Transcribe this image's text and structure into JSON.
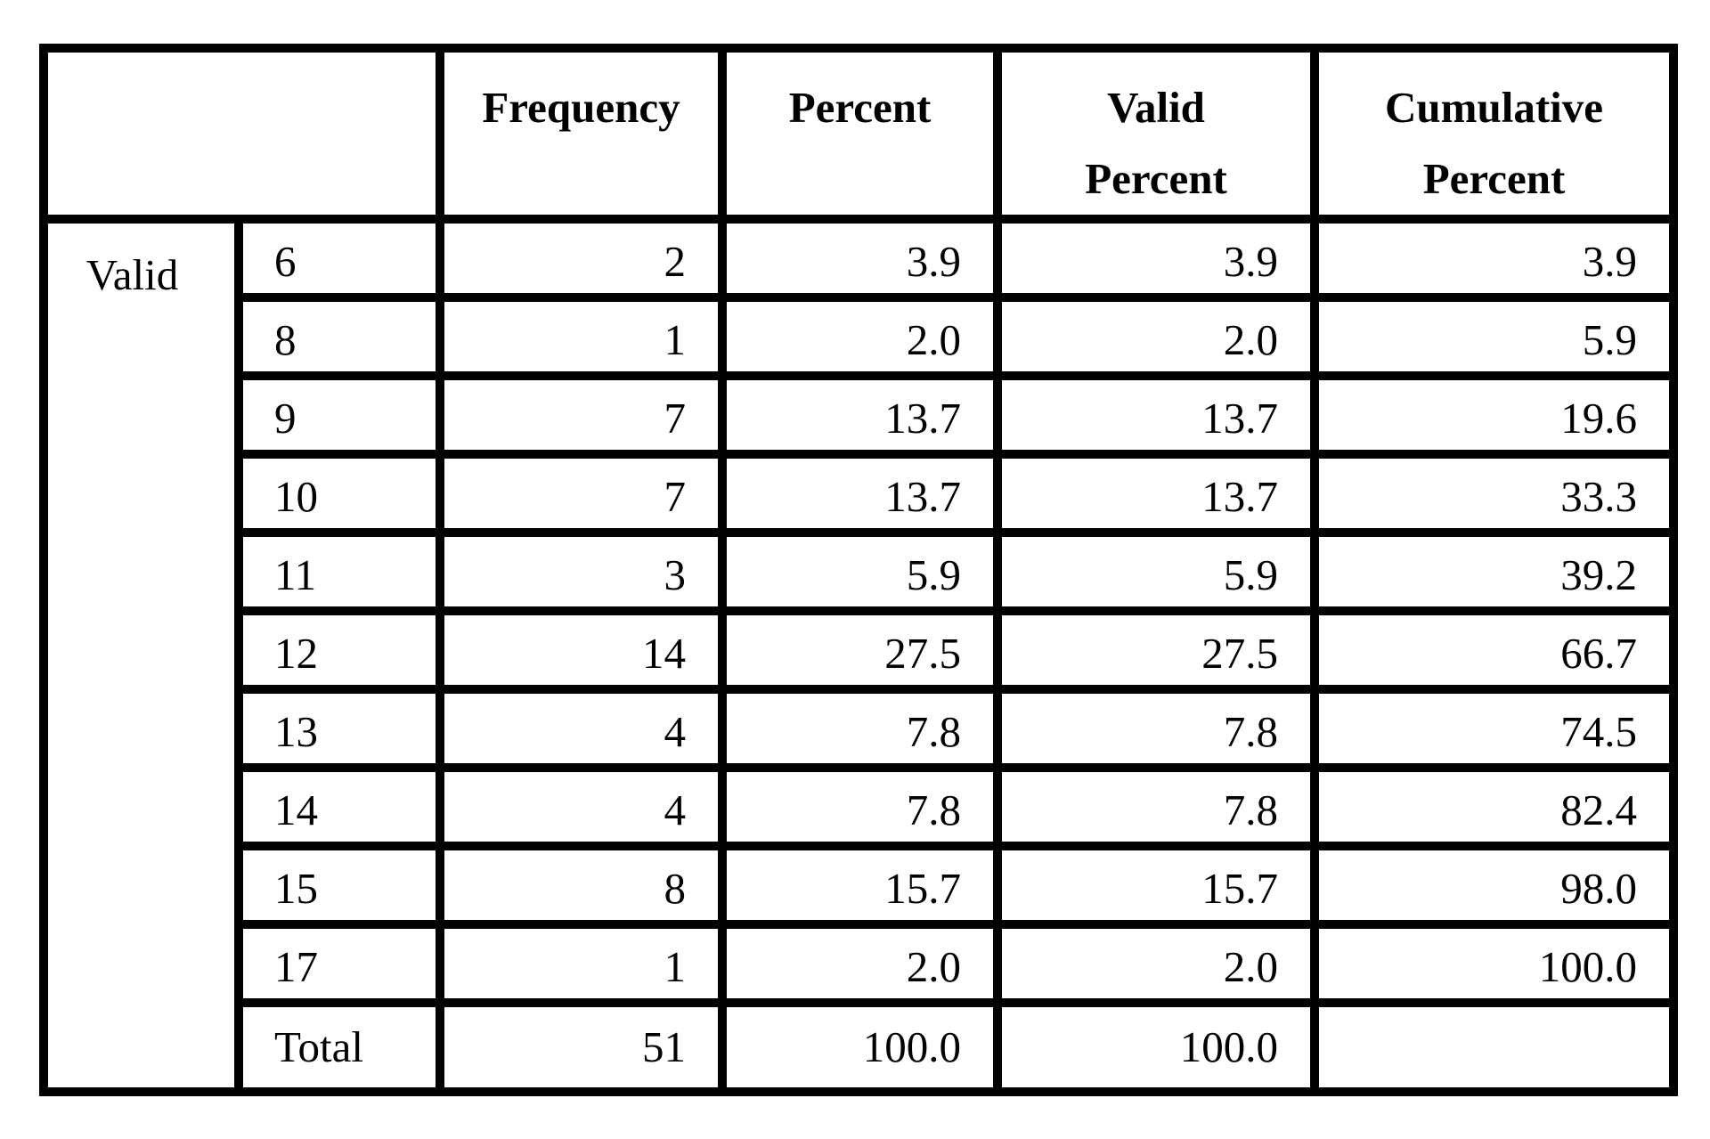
{
  "table": {
    "headers": {
      "frequency": "Frequency",
      "percent": "Percent",
      "valid_percent_line1": "Valid",
      "valid_percent_line2": "Percent",
      "cumulative_percent_line1": "Cumulative",
      "cumulative_percent_line2": "Percent"
    },
    "group_label": "Valid",
    "rows": [
      {
        "value": "6",
        "frequency": "2",
        "percent": "3.9",
        "valid_percent": "3.9",
        "cumulative_percent": "3.9"
      },
      {
        "value": "8",
        "frequency": "1",
        "percent": "2.0",
        "valid_percent": "2.0",
        "cumulative_percent": "5.9"
      },
      {
        "value": "9",
        "frequency": "7",
        "percent": "13.7",
        "valid_percent": "13.7",
        "cumulative_percent": "19.6"
      },
      {
        "value": "10",
        "frequency": "7",
        "percent": "13.7",
        "valid_percent": "13.7",
        "cumulative_percent": "33.3"
      },
      {
        "value": "11",
        "frequency": "3",
        "percent": "5.9",
        "valid_percent": "5.9",
        "cumulative_percent": "39.2"
      },
      {
        "value": "12",
        "frequency": "14",
        "percent": "27.5",
        "valid_percent": "27.5",
        "cumulative_percent": "66.7"
      },
      {
        "value": "13",
        "frequency": "4",
        "percent": "7.8",
        "valid_percent": "7.8",
        "cumulative_percent": "74.5"
      },
      {
        "value": "14",
        "frequency": "4",
        "percent": "7.8",
        "valid_percent": "7.8",
        "cumulative_percent": "82.4"
      },
      {
        "value": "15",
        "frequency": "8",
        "percent": "15.7",
        "valid_percent": "15.7",
        "cumulative_percent": "98.0"
      },
      {
        "value": "17",
        "frequency": "1",
        "percent": "2.0",
        "valid_percent": "2.0",
        "cumulative_percent": "100.0"
      }
    ],
    "total": {
      "label": "Total",
      "frequency": "51",
      "percent": "100.0",
      "valid_percent": "100.0",
      "cumulative_percent": ""
    }
  }
}
